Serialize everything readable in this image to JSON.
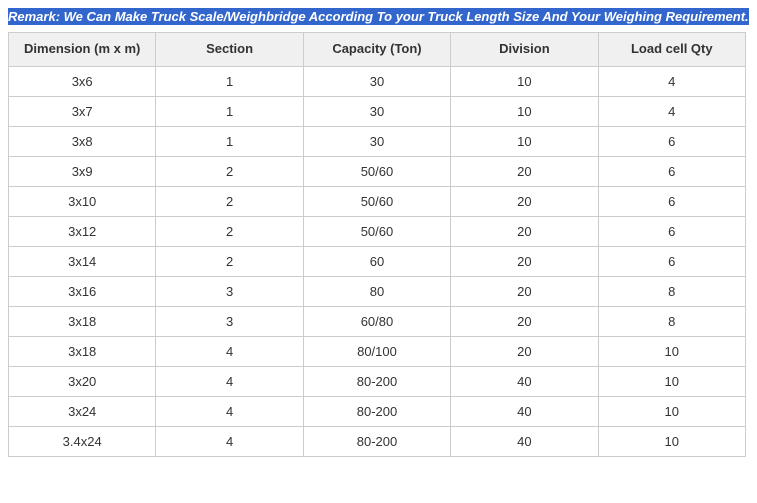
{
  "remark": {
    "label": "Remark:",
    "text": " We Can Make Truck Scale/Weighbridge According To your Truck Length Size And Your Weighing Requirement."
  },
  "table": {
    "headers": {
      "dimension": "Dimension (m x m)",
      "section": "Section",
      "capacity": "Capacity (Ton)",
      "division": "Division",
      "loadcell": "Load cell Qty"
    },
    "rows": [
      {
        "dimension": "3x6",
        "section": "1",
        "capacity": "30",
        "division": "10",
        "loadcell": "4"
      },
      {
        "dimension": "3x7",
        "section": "1",
        "capacity": "30",
        "division": "10",
        "loadcell": "4"
      },
      {
        "dimension": "3x8",
        "section": "1",
        "capacity": "30",
        "division": "10",
        "loadcell": "6"
      },
      {
        "dimension": "3x9",
        "section": "2",
        "capacity": "50/60",
        "division": "20",
        "loadcell": "6"
      },
      {
        "dimension": "3x10",
        "section": "2",
        "capacity": "50/60",
        "division": "20",
        "loadcell": "6"
      },
      {
        "dimension": "3x12",
        "section": "2",
        "capacity": "50/60",
        "division": "20",
        "loadcell": "6"
      },
      {
        "dimension": "3x14",
        "section": "2",
        "capacity": "60",
        "division": "20",
        "loadcell": "6"
      },
      {
        "dimension": "3x16",
        "section": "3",
        "capacity": "80",
        "division": "20",
        "loadcell": "8"
      },
      {
        "dimension": "3x18",
        "section": "3",
        "capacity": "60/80",
        "division": "20",
        "loadcell": "8"
      },
      {
        "dimension": "3x18",
        "section": "4",
        "capacity": "80/100",
        "division": "20",
        "loadcell": "10"
      },
      {
        "dimension": "3x20",
        "section": "4",
        "capacity": "80-200",
        "division": "40",
        "loadcell": "10"
      },
      {
        "dimension": "3x24",
        "section": "4",
        "capacity": "80-200",
        "division": "40",
        "loadcell": "10"
      },
      {
        "dimension": "3.4x24",
        "section": "4",
        "capacity": "80-200",
        "division": "40",
        "loadcell": "10"
      }
    ]
  },
  "styling": {
    "header_bg": "#f0f0f0",
    "border_color": "#cccccc",
    "highlight_bg": "#3266cc",
    "highlight_fg": "#ffffff",
    "text_color": "#333333",
    "font_family": "Arial, Verdana, sans-serif"
  }
}
